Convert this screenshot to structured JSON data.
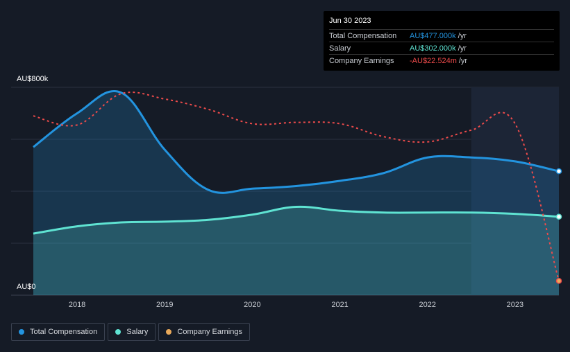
{
  "tooltip": {
    "date": "Jun 30 2023",
    "rows": [
      {
        "label": "Total Compensation",
        "value": "AU$477.000k",
        "unit": "/yr",
        "color": "#2394df"
      },
      {
        "label": "Salary",
        "value": "AU$302.000k",
        "unit": "/yr",
        "color": "#5fe3d2"
      },
      {
        "label": "Company Earnings",
        "value": "-AU$22.524m",
        "unit": "/yr",
        "color": "#ee4b4b"
      }
    ]
  },
  "legend": [
    {
      "label": "Total Compensation",
      "color": "#2394df"
    },
    {
      "label": "Salary",
      "color": "#5fe3d2"
    },
    {
      "label": "Company Earnings",
      "color": "#e9a95a"
    }
  ],
  "chart_data": {
    "type": "line",
    "y_top_label": "AU$800k",
    "y_bottom_label": "AU$0",
    "ylim": [
      0,
      800
    ],
    "xlim": [
      2017.5,
      2023.5
    ],
    "x_ticks": [
      "2018",
      "2019",
      "2020",
      "2021",
      "2022",
      "2023"
    ],
    "grid": true,
    "legend_position": "bottom-left",
    "highlight_from": 2022.5,
    "series": [
      {
        "name": "Total Compensation",
        "color": "#2394df",
        "x": [
          2017.5,
          2018.0,
          2018.5,
          2019.0,
          2019.5,
          2020.0,
          2020.5,
          2021.0,
          2021.5,
          2022.0,
          2022.5,
          2023.0,
          2023.5
        ],
        "values": [
          570,
          700,
          780,
          560,
          405,
          410,
          420,
          440,
          470,
          530,
          530,
          515,
          477
        ]
      },
      {
        "name": "Salary",
        "color": "#5fe3d2",
        "x": [
          2017.5,
          2018.0,
          2018.5,
          2019.0,
          2019.5,
          2020.0,
          2020.5,
          2021.0,
          2021.5,
          2022.0,
          2022.5,
          2023.0,
          2023.5
        ],
        "values": [
          237,
          265,
          280,
          283,
          290,
          310,
          340,
          325,
          318,
          318,
          318,
          313,
          302
        ]
      },
      {
        "name": "Company Earnings",
        "color": "#ee4b4b",
        "dashed": true,
        "marker_color": "#e9a95a",
        "x": [
          2017.5,
          2018.0,
          2018.5,
          2019.0,
          2019.5,
          2020.0,
          2020.5,
          2021.0,
          2021.5,
          2022.0,
          2022.5,
          2023.0,
          2023.5
        ],
        "values": [
          690,
          655,
          775,
          755,
          715,
          660,
          665,
          660,
          610,
          590,
          635,
          660,
          55
        ]
      }
    ]
  }
}
